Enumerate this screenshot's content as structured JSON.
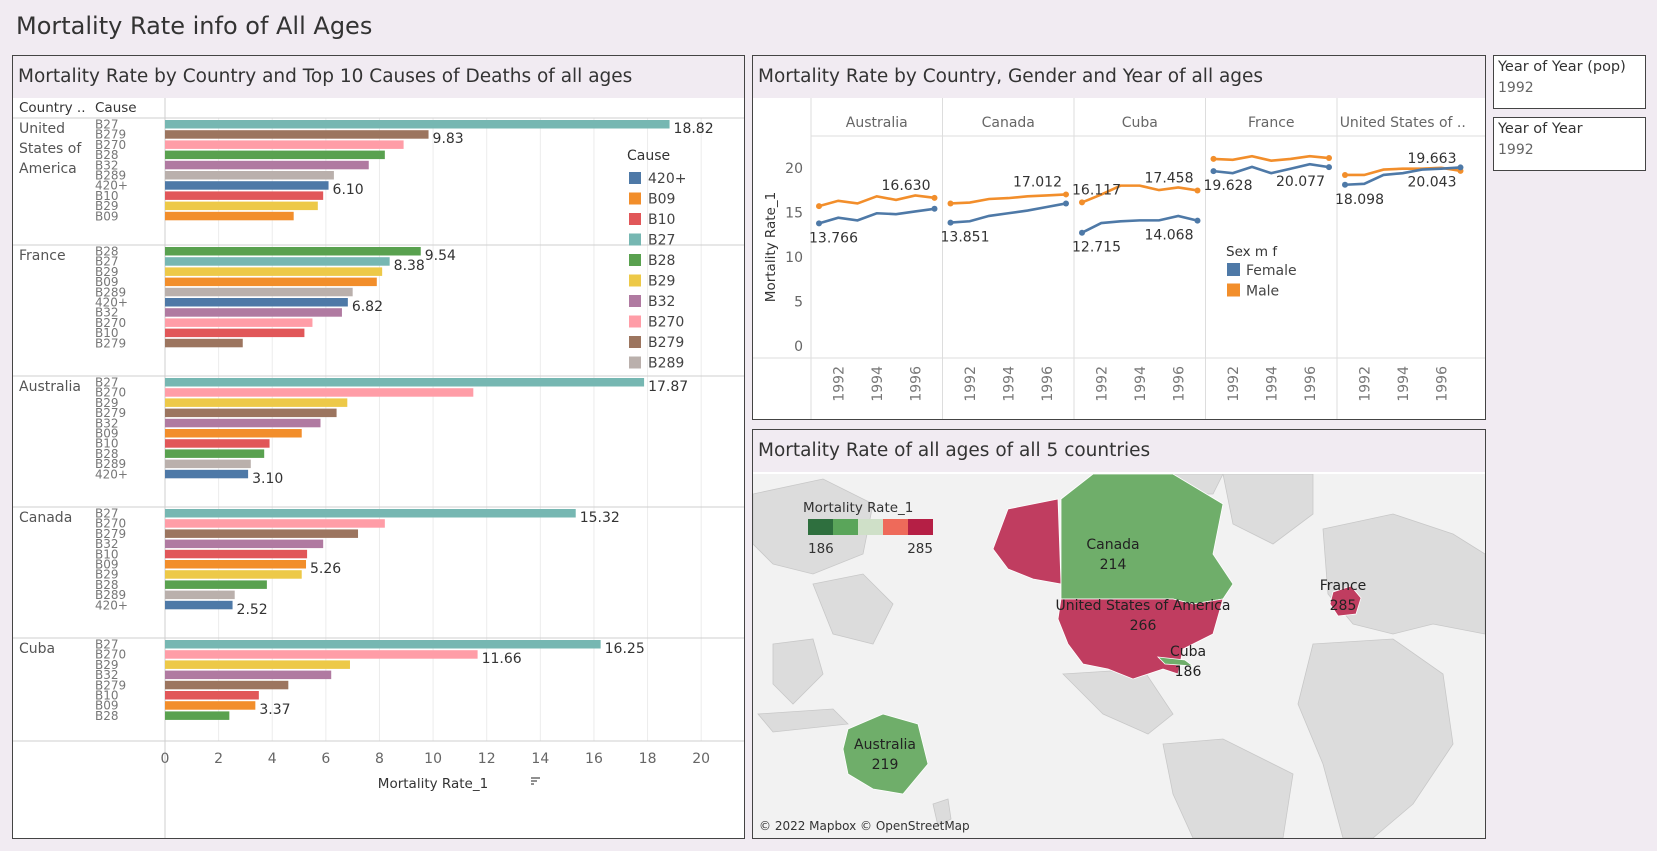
{
  "dashboard_title": "Mortality Rate info of All Ages",
  "colors": {
    "420+": "#4e79a7",
    "B09": "#f28e2b",
    "B10": "#e15759",
    "B27": "#76b7b2",
    "B28": "#59a14f",
    "B29": "#edc948",
    "B32": "#b07aa1",
    "B270": "#ff9da7",
    "B279": "#9c755f",
    "B289": "#bab0ac",
    "female": "#4e79a7",
    "male": "#f28e2b",
    "map_high": "#c03d60",
    "map_low": "#6fae6a"
  },
  "filters": [
    {
      "label": "Year of Year (pop)",
      "value": "1992"
    },
    {
      "label": "Year of Year",
      "value": "1992"
    }
  ],
  "chart_data": [
    {
      "type": "bar",
      "orientation": "horizontal",
      "title": "Mortality Rate by Country and Top 10 Causes of Deaths of all ages",
      "row_headers": [
        "Country ..",
        "Cause"
      ],
      "xlabel": "Mortality Rate_1",
      "xlim": [
        0,
        21
      ],
      "xticks": [
        0,
        2,
        4,
        6,
        8,
        10,
        12,
        14,
        16,
        18,
        20
      ],
      "legend": {
        "title": "Cause",
        "items": [
          "420+",
          "B09",
          "B10",
          "B27",
          "B28",
          "B29",
          "B32",
          "B270",
          "B279",
          "B289"
        ],
        "placement": "right"
      },
      "groups": [
        {
          "country": "United\nStates of\nAmerica",
          "bars": [
            {
              "cause": "B27",
              "value": 18.82,
              "label": "18.82"
            },
            {
              "cause": "B279",
              "value": 9.83,
              "label": "9.83"
            },
            {
              "cause": "B270",
              "value": 8.9
            },
            {
              "cause": "B28",
              "value": 8.2
            },
            {
              "cause": "B32",
              "value": 7.6
            },
            {
              "cause": "B289",
              "value": 6.3
            },
            {
              "cause": "420+",
              "value": 6.1,
              "label": "6.10"
            },
            {
              "cause": "B10",
              "value": 5.9
            },
            {
              "cause": "B29",
              "value": 5.7
            },
            {
              "cause": "B09",
              "value": 4.8
            }
          ]
        },
        {
          "country": "France",
          "bars": [
            {
              "cause": "B28",
              "value": 9.54,
              "label": "9.54"
            },
            {
              "cause": "B27",
              "value": 8.38,
              "label": "8.38"
            },
            {
              "cause": "B29",
              "value": 8.1
            },
            {
              "cause": "B09",
              "value": 7.9
            },
            {
              "cause": "B289",
              "value": 7.0
            },
            {
              "cause": "420+",
              "value": 6.82,
              "label": "6.82"
            },
            {
              "cause": "B32",
              "value": 6.6
            },
            {
              "cause": "B270",
              "value": 5.5
            },
            {
              "cause": "B10",
              "value": 5.2
            },
            {
              "cause": "B279",
              "value": 2.9
            }
          ]
        },
        {
          "country": "Australia",
          "bars": [
            {
              "cause": "B27",
              "value": 17.87,
              "label": "17.87"
            },
            {
              "cause": "B270",
              "value": 11.5
            },
            {
              "cause": "B29",
              "value": 6.8
            },
            {
              "cause": "B279",
              "value": 6.4
            },
            {
              "cause": "B32",
              "value": 5.8
            },
            {
              "cause": "B09",
              "value": 5.1
            },
            {
              "cause": "B10",
              "value": 3.9
            },
            {
              "cause": "B28",
              "value": 3.7
            },
            {
              "cause": "B289",
              "value": 3.2
            },
            {
              "cause": "420+",
              "value": 3.1,
              "label": "3.10"
            }
          ]
        },
        {
          "country": "Canada",
          "bars": [
            {
              "cause": "B27",
              "value": 15.32,
              "label": "15.32"
            },
            {
              "cause": "B270",
              "value": 8.2
            },
            {
              "cause": "B279",
              "value": 7.2
            },
            {
              "cause": "B32",
              "value": 5.9
            },
            {
              "cause": "B10",
              "value": 5.3
            },
            {
              "cause": "B09",
              "value": 5.26,
              "label": "5.26"
            },
            {
              "cause": "B29",
              "value": 5.1
            },
            {
              "cause": "B28",
              "value": 3.8
            },
            {
              "cause": "B289",
              "value": 2.6
            },
            {
              "cause": "420+",
              "value": 2.52,
              "label": "2.52"
            }
          ]
        },
        {
          "country": "Cuba",
          "bars": [
            {
              "cause": "B27",
              "value": 16.25,
              "label": "16.25"
            },
            {
              "cause": "B270",
              "value": 11.66,
              "label": "11.66"
            },
            {
              "cause": "B29",
              "value": 6.9
            },
            {
              "cause": "B32",
              "value": 6.2
            },
            {
              "cause": "B279",
              "value": 4.6
            },
            {
              "cause": "B10",
              "value": 3.5
            },
            {
              "cause": "B09",
              "value": 3.37,
              "label": "3.37"
            },
            {
              "cause": "B28",
              "value": 2.4
            }
          ]
        }
      ]
    },
    {
      "type": "line",
      "title": "Mortality Rate by Country, Gender and Year of all ages",
      "ylabel": "Mortality Rate_1",
      "ylim": [
        0,
        22
      ],
      "yticks": [
        0,
        5,
        10,
        15,
        20
      ],
      "x": [
        1991,
        1992,
        1993,
        1994,
        1995,
        1996,
        1997
      ],
      "xticks": [
        "1992",
        "1994",
        "1996"
      ],
      "legend": {
        "title": "Sex m f",
        "items": [
          "Female",
          "Male"
        ],
        "placement": "inside"
      },
      "panels": [
        {
          "country": "Australia",
          "female": [
            13.766,
            14.4,
            14.1,
            14.9,
            14.8,
            15.1,
            15.4
          ],
          "male": [
            15.7,
            16.3,
            16.0,
            16.8,
            16.4,
            16.9,
            16.63
          ],
          "labels": [
            {
              "series": "female",
              "index": 0,
              "text": "13.766"
            },
            {
              "series": "male",
              "index": 6,
              "text": "16.630"
            }
          ]
        },
        {
          "country": "Canada",
          "female": [
            13.851,
            14.0,
            14.6,
            14.9,
            15.2,
            15.6,
            16.0
          ],
          "male": [
            16.0,
            16.1,
            16.5,
            16.6,
            16.8,
            16.9,
            17.012
          ],
          "labels": [
            {
              "series": "female",
              "index": 0,
              "text": "13.851"
            },
            {
              "series": "male",
              "index": 6,
              "text": "17.012"
            }
          ]
        },
        {
          "country": "Cuba",
          "female": [
            12.715,
            13.8,
            14.0,
            14.1,
            14.1,
            14.6,
            14.068
          ],
          "male": [
            16.117,
            17.0,
            18.0,
            18.0,
            17.5,
            17.8,
            17.458
          ],
          "labels": [
            {
              "series": "female",
              "index": 0,
              "text": "12.715"
            },
            {
              "series": "female",
              "index": 6,
              "text": "14.068"
            },
            {
              "series": "male",
              "index": 0,
              "text": "16.117"
            },
            {
              "series": "male",
              "index": 6,
              "text": "17.458"
            }
          ]
        },
        {
          "country": "France",
          "female": [
            19.628,
            19.4,
            20.1,
            19.4,
            19.9,
            20.4,
            20.077
          ],
          "male": [
            21.0,
            20.9,
            21.3,
            20.8,
            21.0,
            21.3,
            21.1
          ],
          "labels": [
            {
              "series": "female",
              "index": 0,
              "text": "19.628"
            },
            {
              "series": "female",
              "index": 6,
              "text": "20.077"
            }
          ]
        },
        {
          "country": "United States of ..",
          "female": [
            18.098,
            18.2,
            19.2,
            19.4,
            19.8,
            19.9,
            20.043
          ],
          "male": [
            19.2,
            19.2,
            19.8,
            19.9,
            19.9,
            20.0,
            19.663
          ],
          "labels": [
            {
              "series": "female",
              "index": 0,
              "text": "18.098"
            },
            {
              "series": "female",
              "index": 6,
              "text": "20.043"
            },
            {
              "series": "male",
              "index": 6,
              "text": "19.663"
            }
          ]
        }
      ]
    },
    {
      "type": "map",
      "title": "Mortality Rate of all ages of all 5 countries",
      "legend": {
        "title": "Mortality Rate_1",
        "min": "186",
        "max": "285"
      },
      "regions": [
        {
          "name": "Canada",
          "value": 214
        },
        {
          "name": "United States of America",
          "value": 266
        },
        {
          "name": "France",
          "value": 285
        },
        {
          "name": "Cuba",
          "value": 186
        },
        {
          "name": "Australia",
          "value": 219
        }
      ],
      "attribution": "© 2022 Mapbox © OpenStreetMap"
    }
  ]
}
